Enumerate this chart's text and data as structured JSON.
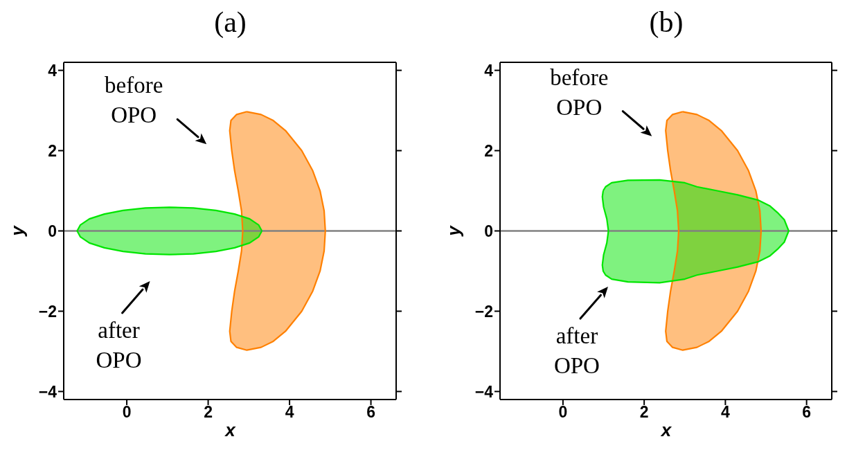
{
  "chart_data": [
    {
      "type": "area",
      "title": "(a)",
      "xlabel": "x",
      "ylabel": "y",
      "xlim": [
        -1.55,
        6.62
      ],
      "ylim": [
        -4.2,
        4.2
      ],
      "xticks": [
        0,
        2,
        4,
        6
      ],
      "yticks": [
        -4,
        -2,
        0,
        2,
        4
      ],
      "ref_lines": [
        {
          "axis": "y",
          "value": 0,
          "color": "#808080"
        }
      ],
      "annotations": [
        "before OPO",
        "after OPO"
      ],
      "series": [
        {
          "color": "#ff8000",
          "x": [
            2.95,
            3.3,
            3.6,
            3.9,
            4.3,
            4.57,
            4.75,
            4.85,
            4.88,
            4.85,
            4.75,
            4.57,
            4.3,
            3.9,
            3.6,
            3.3,
            2.95,
            2.7,
            2.56,
            2.53,
            2.58,
            2.65,
            2.74,
            2.82,
            2.85,
            2.82,
            2.74,
            2.65,
            2.58,
            2.53,
            2.56,
            2.7,
            2.95
          ],
          "values": [
            2.97,
            2.9,
            2.75,
            2.5,
            2.0,
            1.5,
            1.0,
            0.5,
            0,
            -0.5,
            -1,
            -1.5,
            -2,
            -2.5,
            -2.75,
            -2.9,
            -2.97,
            -2.9,
            -2.75,
            -2.5,
            -2,
            -1.5,
            -1,
            -0.5,
            0,
            0.5,
            1,
            1.5,
            2,
            2.5,
            2.75,
            2.9,
            2.97
          ]
        },
        {
          "color": "#00e600",
          "x": [
            3.32,
            3.24,
            3.02,
            2.65,
            2.19,
            1.64,
            1.05,
            0.46,
            -0.09,
            -0.55,
            -0.92,
            -1.14,
            -1.22,
            -1.14,
            -0.92,
            -0.55,
            -0.09,
            0.46,
            1.05,
            1.64,
            2.19,
            2.65,
            3.02,
            3.24,
            3.32
          ],
          "values": [
            0,
            0.15,
            0.3,
            0.42,
            0.51,
            0.57,
            0.59,
            0.57,
            0.51,
            0.42,
            0.3,
            0.15,
            0,
            -0.15,
            -0.3,
            -0.42,
            -0.51,
            -0.57,
            -0.59,
            -0.57,
            -0.51,
            -0.42,
            -0.3,
            -0.15,
            0
          ]
        }
      ]
    },
    {
      "type": "area",
      "title": "(b)",
      "xlabel": "x",
      "ylabel": "y",
      "xlim": [
        -1.55,
        6.62
      ],
      "ylim": [
        -4.2,
        4.2
      ],
      "xticks": [
        0,
        2,
        4,
        6
      ],
      "yticks": [
        -4,
        -2,
        0,
        2,
        4
      ],
      "ref_lines": [
        {
          "axis": "y",
          "value": 0,
          "color": "#808080"
        }
      ],
      "annotations": [
        "before OPO",
        "after OPO"
      ],
      "series": [
        {
          "color": "#ff8000",
          "x": [
            2.95,
            3.3,
            3.6,
            3.9,
            4.3,
            4.57,
            4.75,
            4.85,
            4.88,
            4.85,
            4.75,
            4.57,
            4.3,
            3.9,
            3.6,
            3.3,
            2.95,
            2.7,
            2.56,
            2.53,
            2.58,
            2.65,
            2.74,
            2.82,
            2.85,
            2.82,
            2.74,
            2.65,
            2.58,
            2.53,
            2.56,
            2.7,
            2.95
          ],
          "values": [
            2.97,
            2.9,
            2.75,
            2.5,
            2.0,
            1.5,
            1.0,
            0.5,
            0,
            -0.5,
            -1,
            -1.5,
            -2,
            -2.5,
            -2.75,
            -2.9,
            -2.97,
            -2.9,
            -2.75,
            -2.5,
            -2,
            -1.5,
            -1,
            -0.5,
            0,
            0.5,
            1,
            1.5,
            2,
            2.5,
            2.75,
            2.9,
            2.97
          ]
        },
        {
          "color": "#00e600",
          "x": [
            0.99,
            1.05,
            1.2,
            1.6,
            2.38,
            3.0,
            3.3,
            3.8,
            4.3,
            4.8,
            5.1,
            5.28,
            5.45,
            5.56,
            5.45,
            5.28,
            5.1,
            4.8,
            4.3,
            3.8,
            3.3,
            3.0,
            2.38,
            1.6,
            1.2,
            1.05,
            0.99,
            0.97,
            1.0,
            1.08,
            1.12,
            1.08,
            1.0,
            0.97,
            0.99
          ],
          "values": [
            1.0,
            1.1,
            1.2,
            1.26,
            1.27,
            1.2,
            1.1,
            1.0,
            0.9,
            0.77,
            0.62,
            0.46,
            0.28,
            0,
            -0.28,
            -0.46,
            -0.62,
            -0.77,
            -0.9,
            -1.0,
            -1.1,
            -1.2,
            -1.29,
            -1.27,
            -1.2,
            -1.1,
            -1.0,
            -0.85,
            -0.6,
            -0.3,
            0,
            0.3,
            0.6,
            0.85,
            1.0
          ]
        }
      ]
    }
  ]
}
